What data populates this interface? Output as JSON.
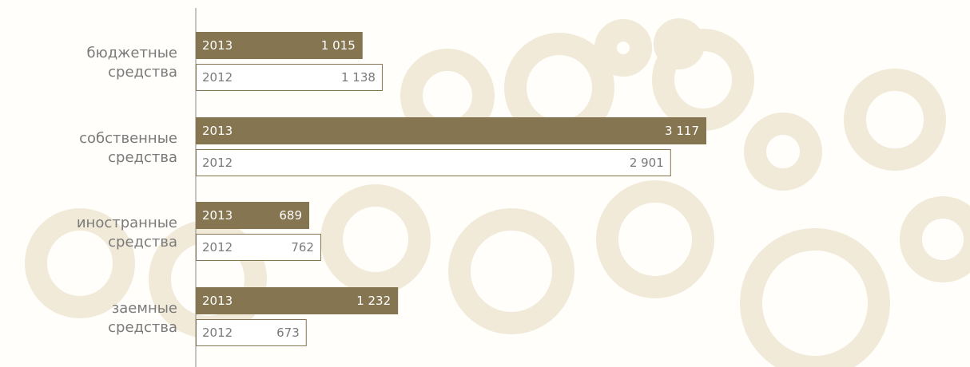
{
  "chart_data": {
    "type": "bar",
    "orientation": "horizontal",
    "categories": [
      "бюджетные средства",
      "собственные средства",
      "иностранные средства",
      "заемные средства"
    ],
    "series": [
      {
        "name": "2013",
        "color": "#857551",
        "values": [
          1015,
          3117,
          689,
          1232
        ],
        "value_labels": [
          "1 015",
          "3 117",
          "689",
          "1 232"
        ]
      },
      {
        "name": "2012",
        "color": "#ffffff",
        "values": [
          1138,
          2901,
          762,
          673
        ],
        "value_labels": [
          "1 138",
          "2 901",
          "762",
          "673"
        ]
      }
    ]
  }
}
